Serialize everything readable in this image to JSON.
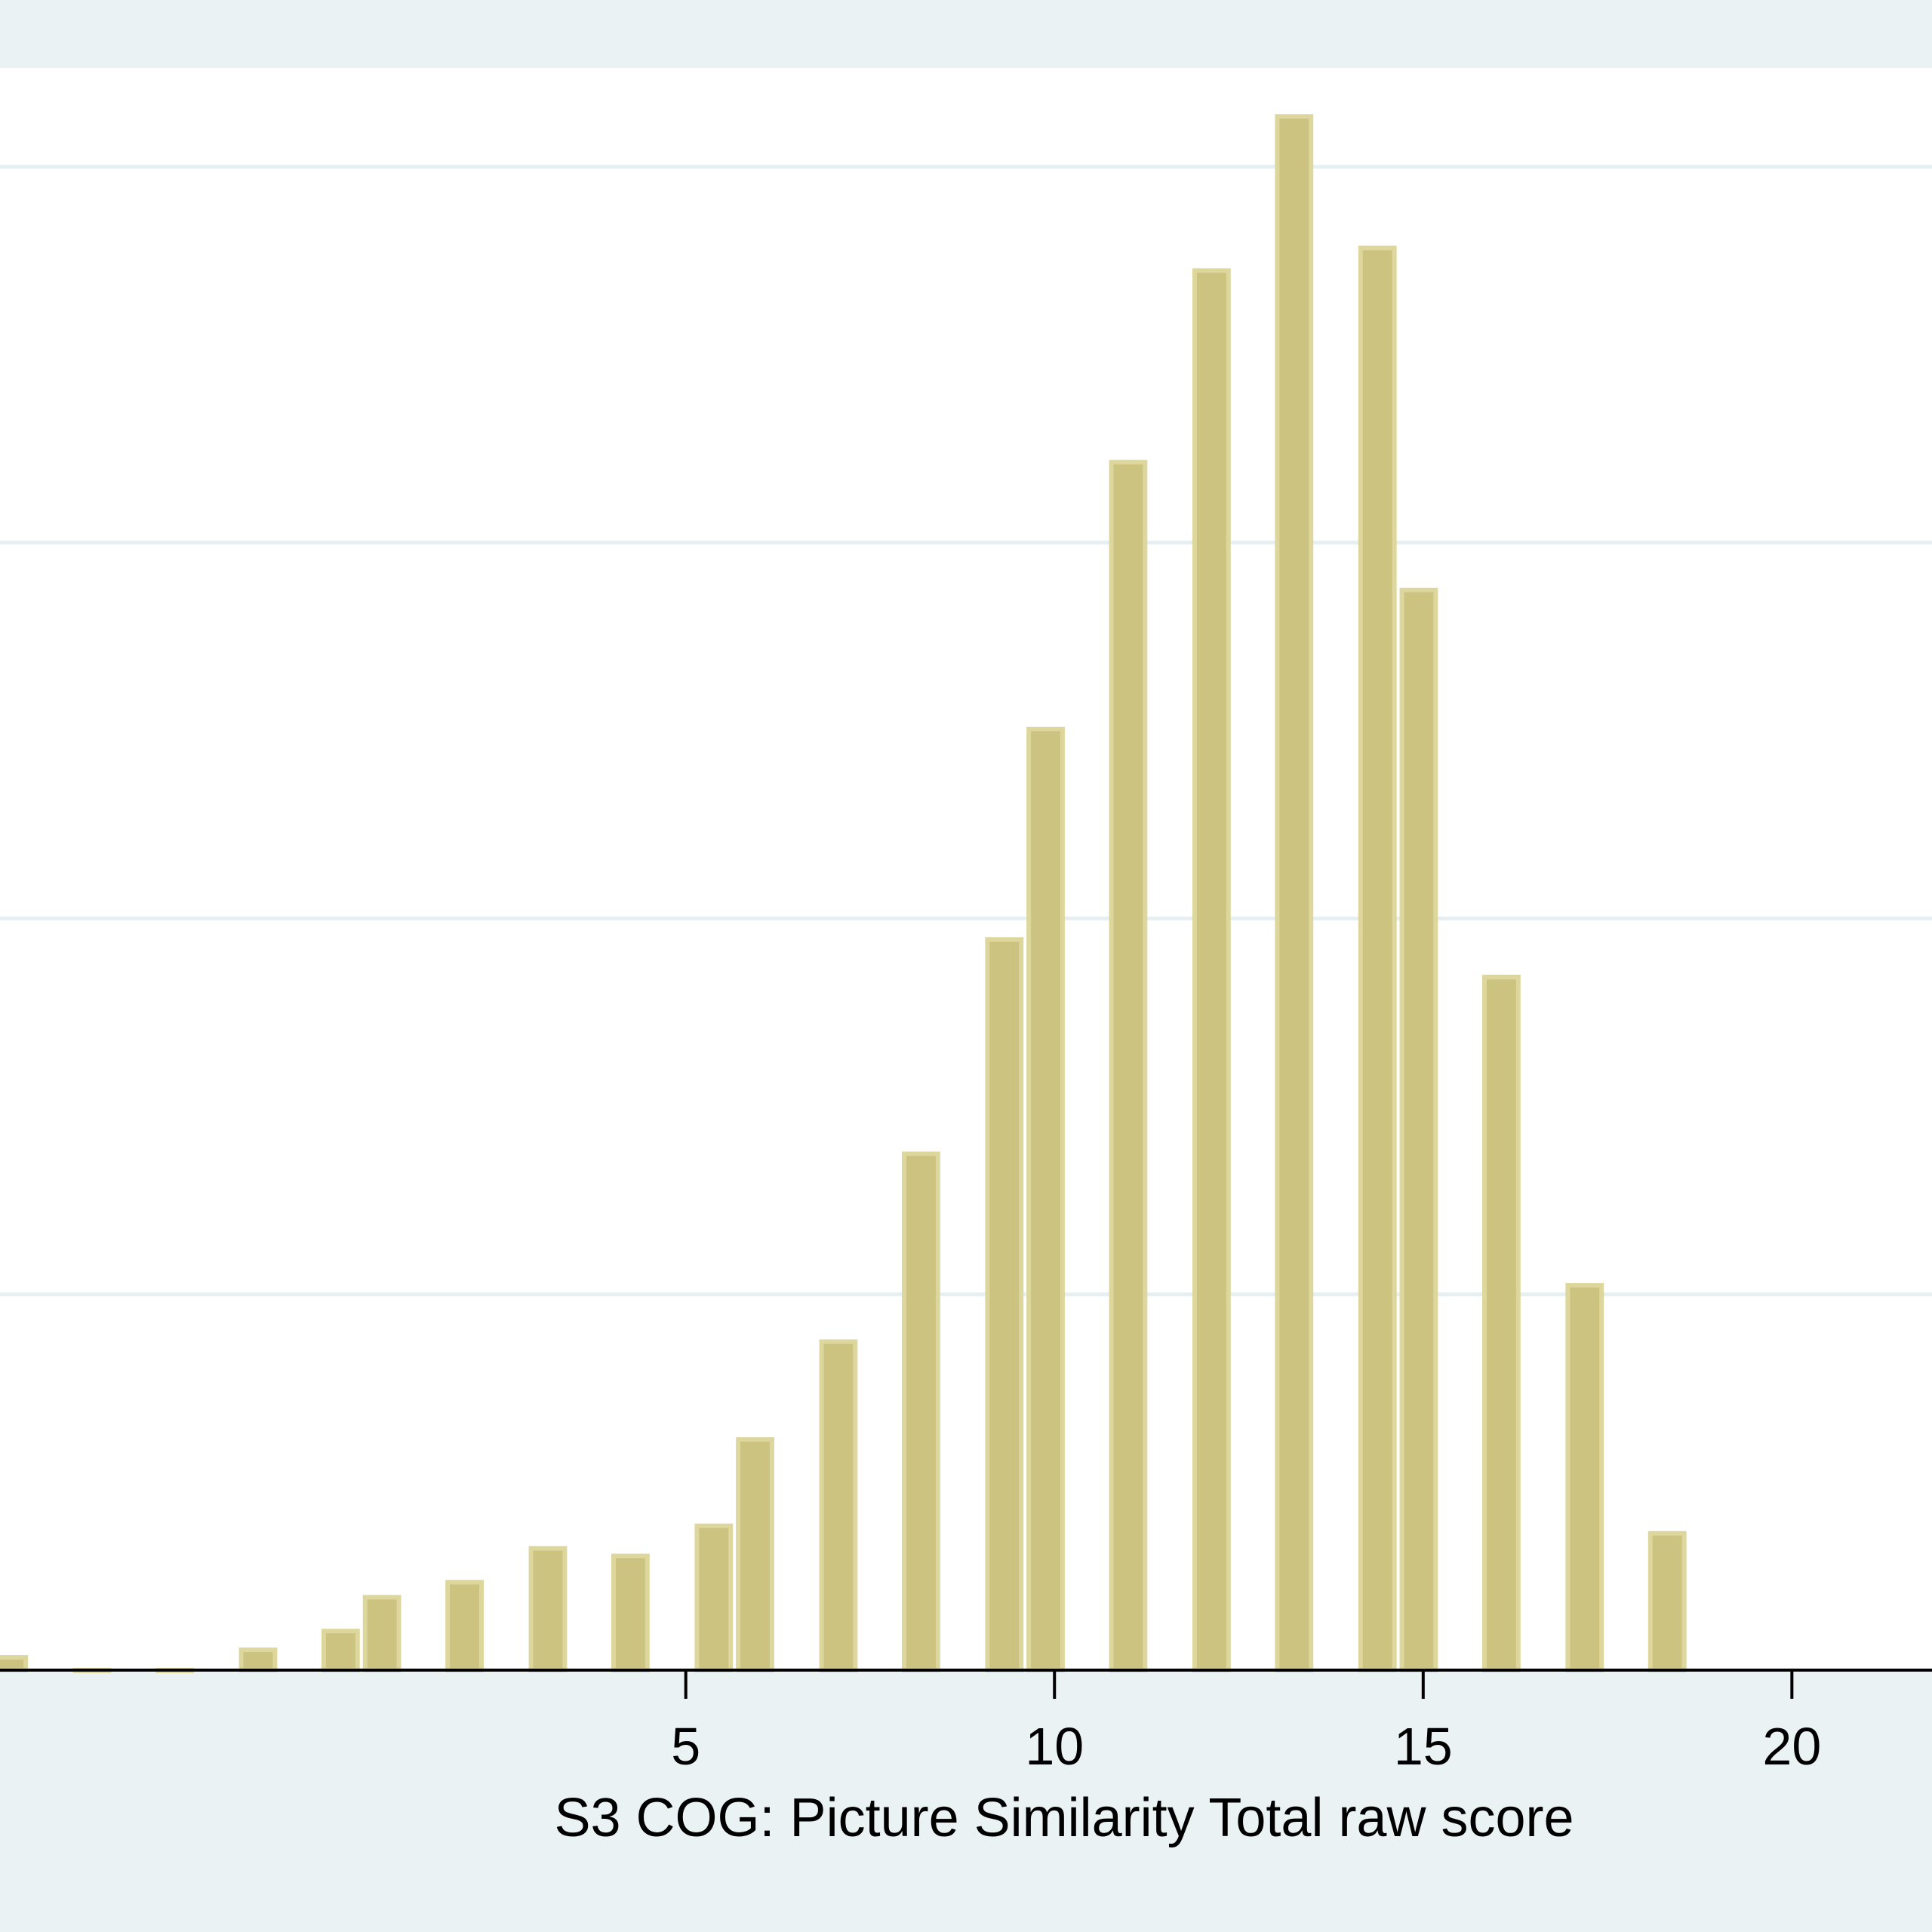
{
  "chart_data": {
    "type": "bar",
    "title": "",
    "xlabel": "S3 COG: Picture Similarity Total raw score",
    "ylabel": "",
    "xlim": [
      -4.3,
      21.9
    ],
    "ylim": [
      0,
      4.2
    ],
    "yticks": [
      1,
      2,
      3,
      4
    ],
    "xticks": [
      5,
      10,
      15,
      20
    ],
    "xtick_labels": [
      "5",
      "10",
      "15",
      "20"
    ],
    "bar_width": 0.52,
    "grid": true,
    "legend": "none",
    "colors": {
      "bar_fill": "#cbc37f",
      "bar_edge": "#ddd79d",
      "plot_background": "#ffffff",
      "outer_background": "#eaf2f3",
      "gridline": "#e6eff1",
      "axis": "#000000"
    },
    "bins": [
      {
        "x": -4.18,
        "y": 0.04
      },
      {
        "x": -3.05,
        "y": 0.005
      },
      {
        "x": -1.93,
        "y": 0.005
      },
      {
        "x": -0.8,
        "y": 0.06
      },
      {
        "x": 0.32,
        "y": 0.11
      },
      {
        "x": 0.88,
        "y": 0.2
      },
      {
        "x": 2.0,
        "y": 0.24
      },
      {
        "x": 3.13,
        "y": 0.33
      },
      {
        "x": 4.25,
        "y": 0.31
      },
      {
        "x": 5.38,
        "y": 0.39
      },
      {
        "x": 5.94,
        "y": 0.62
      },
      {
        "x": 7.07,
        "y": 0.88
      },
      {
        "x": 8.19,
        "y": 1.38
      },
      {
        "x": 9.32,
        "y": 1.95
      },
      {
        "x": 9.88,
        "y": 2.51
      },
      {
        "x": 11.0,
        "y": 3.22
      },
      {
        "x": 12.13,
        "y": 3.73
      },
      {
        "x": 13.25,
        "y": 4.14
      },
      {
        "x": 14.38,
        "y": 3.79
      },
      {
        "x": 14.94,
        "y": 2.88
      },
      {
        "x": 16.06,
        "y": 1.85
      },
      {
        "x": 17.19,
        "y": 1.03
      },
      {
        "x": 18.31,
        "y": 0.37
      }
    ]
  }
}
